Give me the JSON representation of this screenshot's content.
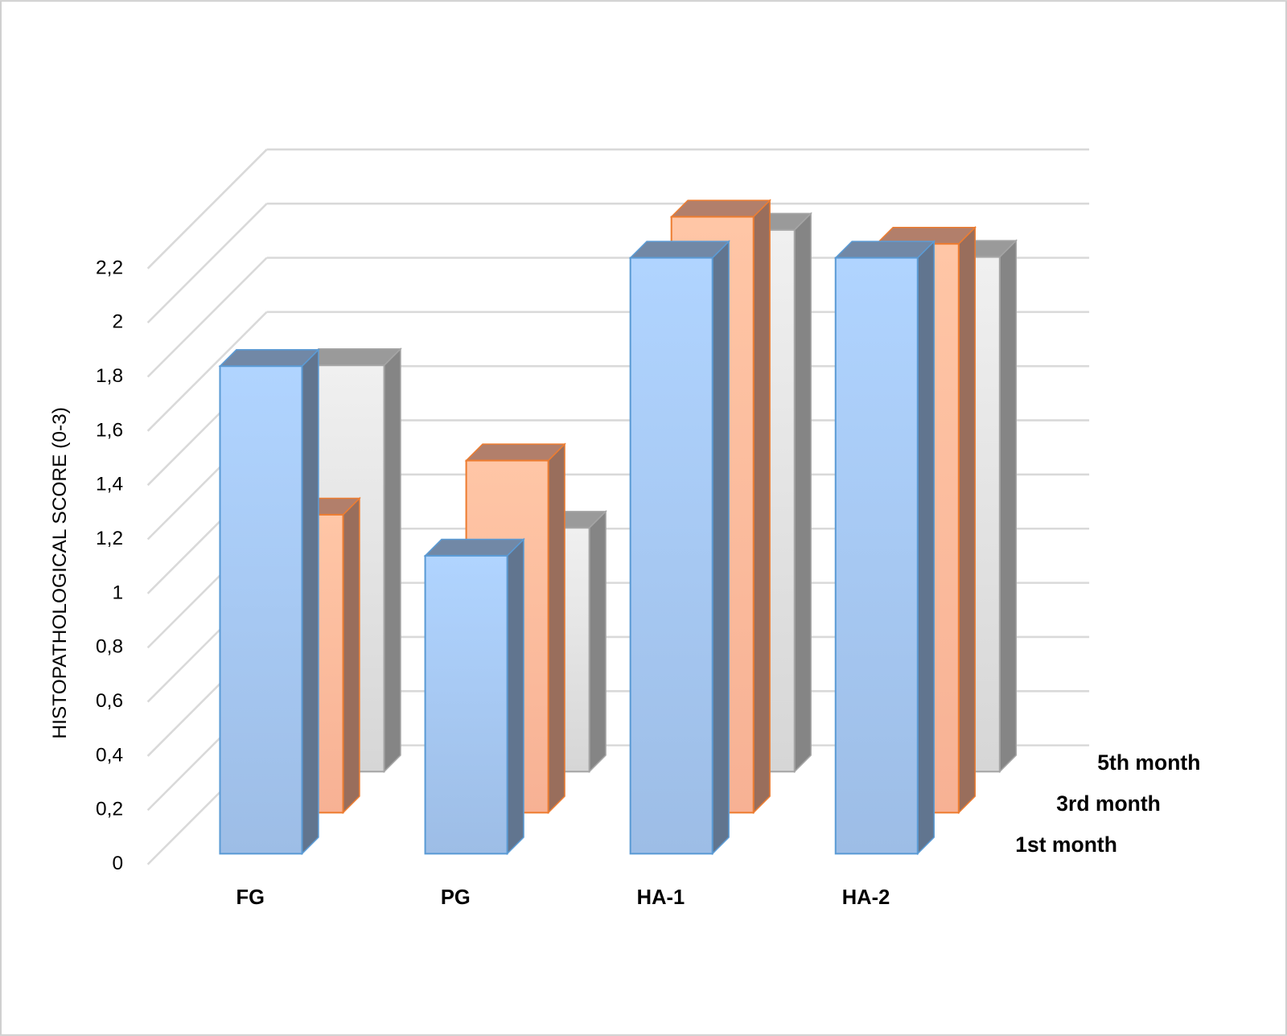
{
  "chart_data": {
    "type": "bar3d",
    "ylabel": "HISTOPATHOLOGICAL SCORE (0-3)",
    "categories": [
      "FG",
      "PG",
      "HA-1",
      "HA-2"
    ],
    "series": [
      {
        "name": "1st month",
        "color": "#9dbde6",
        "stroke": "#5b9bd5",
        "values": [
          1.8,
          1.1,
          2.2,
          2.2
        ]
      },
      {
        "name": "3rd month",
        "color": "#f7b194",
        "stroke": "#ed7d31",
        "values": [
          1.1,
          1.3,
          2.2,
          2.1
        ]
      },
      {
        "name": "5th month",
        "color": "#d6d6d6",
        "stroke": "#a5a5a5",
        "values": [
          1.5,
          0.9,
          2.0,
          1.9
        ]
      }
    ],
    "ylim": [
      0,
      2.2
    ],
    "yticks": [
      0,
      {
        "value": 0.2,
        "label": "0,2"
      },
      {
        "value": 0.4,
        "label": "0,4"
      },
      {
        "value": 0.6,
        "label": "0,6"
      },
      {
        "value": 0.8,
        "label": "0,8"
      },
      1,
      {
        "value": 1.2,
        "label": "1,2"
      },
      {
        "value": 1.4,
        "label": "1,4"
      },
      {
        "value": 1.6,
        "label": "1,6"
      },
      {
        "value": 1.8,
        "label": "1,8"
      },
      2,
      {
        "value": 2.2,
        "label": "2,2"
      }
    ],
    "grid": true
  }
}
